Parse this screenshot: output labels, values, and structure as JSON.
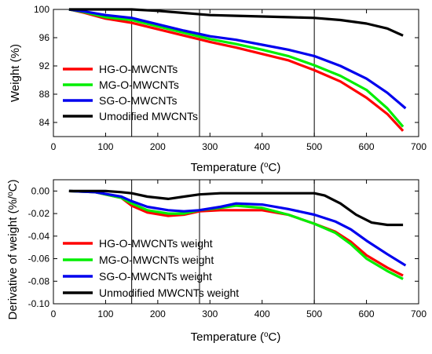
{
  "chart_data": [
    {
      "type": "line",
      "xlabel": "Temperature (oC)",
      "ylabel": "Weight (%)",
      "xlim": [
        0,
        700
      ],
      "ylim": [
        82,
        100
      ],
      "xticks": [
        0,
        100,
        200,
        300,
        400,
        500,
        600,
        700
      ],
      "yticks": [
        84,
        88,
        92,
        96,
        100
      ],
      "vlines": [
        150,
        280,
        500
      ],
      "legend_position": "left",
      "series": [
        {
          "name": "HG-O-MWCNTs",
          "color": "#ff0000",
          "x": [
            30,
            60,
            100,
            150,
            200,
            250,
            300,
            350,
            400,
            450,
            500,
            550,
            600,
            640,
            670
          ],
          "y": [
            100.0,
            99.5,
            98.7,
            98.1,
            97.2,
            96.3,
            95.4,
            94.6,
            93.7,
            92.8,
            91.4,
            89.8,
            87.5,
            85.2,
            82.8
          ]
        },
        {
          "name": "MG-O-MWCNTs",
          "color": "#00ee00",
          "x": [
            30,
            60,
            100,
            150,
            200,
            250,
            300,
            350,
            400,
            450,
            500,
            550,
            600,
            640,
            670
          ],
          "y": [
            100.0,
            99.6,
            98.9,
            98.5,
            97.6,
            96.7,
            95.8,
            95.1,
            94.3,
            93.4,
            92.1,
            90.6,
            88.6,
            86.0,
            83.4
          ]
        },
        {
          "name": "SG-O-MWCNTs",
          "color": "#0000ee",
          "x": [
            30,
            60,
            100,
            150,
            200,
            250,
            300,
            350,
            400,
            450,
            500,
            550,
            600,
            640,
            675
          ],
          "y": [
            100.0,
            99.7,
            99.2,
            98.8,
            97.9,
            97.0,
            96.2,
            95.7,
            95.0,
            94.3,
            93.4,
            92.0,
            90.2,
            88.2,
            86.0
          ]
        },
        {
          "name": "Umodified MWCNTs",
          "color": "#000000",
          "x": [
            30,
            100,
            150,
            200,
            250,
            300,
            350,
            400,
            450,
            500,
            550,
            600,
            640,
            670
          ],
          "y": [
            100.0,
            100.0,
            100.0,
            99.8,
            99.5,
            99.2,
            99.1,
            99.0,
            98.9,
            98.8,
            98.5,
            98.0,
            97.3,
            96.3
          ]
        }
      ]
    },
    {
      "type": "line",
      "xlabel": "Temperature (oC)",
      "ylabel": "Derivative of weight (%/oC)",
      "xlim": [
        0,
        700
      ],
      "ylim": [
        -0.1,
        0.01
      ],
      "xticks": [
        0,
        100,
        200,
        300,
        400,
        500,
        600,
        700
      ],
      "yticks": [
        "0.00",
        "-0.02",
        "-0.04",
        "-0.06",
        "-0.08",
        "-0.10"
      ],
      "vlines": [
        150,
        280,
        500
      ],
      "legend_position": "bottom-left",
      "series": [
        {
          "name": "HG-O-MWCNTs weight",
          "color": "#ff0000",
          "x": [
            30,
            80,
            130,
            150,
            180,
            220,
            250,
            280,
            320,
            350,
            400,
            450,
            500,
            540,
            570,
            600,
            640,
            670
          ],
          "y": [
            0,
            -0.001,
            -0.006,
            -0.013,
            -0.019,
            -0.022,
            -0.021,
            -0.018,
            -0.017,
            -0.017,
            -0.017,
            -0.021,
            -0.029,
            -0.036,
            -0.045,
            -0.057,
            -0.068,
            -0.075
          ]
        },
        {
          "name": "MG-O-MWCNTs weight",
          "color": "#00ee00",
          "x": [
            30,
            80,
            130,
            150,
            180,
            220,
            250,
            280,
            320,
            350,
            400,
            450,
            500,
            540,
            570,
            600,
            640,
            670
          ],
          "y": [
            0,
            -0.001,
            -0.006,
            -0.011,
            -0.017,
            -0.02,
            -0.02,
            -0.017,
            -0.015,
            -0.013,
            -0.015,
            -0.021,
            -0.029,
            -0.037,
            -0.047,
            -0.06,
            -0.071,
            -0.078
          ]
        },
        {
          "name": "SG-O-MWCNTs weight",
          "color": "#0000ee",
          "x": [
            30,
            80,
            130,
            150,
            180,
            220,
            250,
            280,
            320,
            350,
            400,
            450,
            500,
            540,
            570,
            600,
            640,
            675
          ],
          "y": [
            0,
            -0.001,
            -0.005,
            -0.009,
            -0.014,
            -0.017,
            -0.018,
            -0.017,
            -0.014,
            -0.011,
            -0.012,
            -0.016,
            -0.021,
            -0.027,
            -0.034,
            -0.044,
            -0.056,
            -0.066
          ]
        },
        {
          "name": "Unmodified MWCNTs weight",
          "color": "#000000",
          "x": [
            30,
            100,
            130,
            150,
            180,
            220,
            250,
            280,
            320,
            400,
            450,
            500,
            520,
            550,
            580,
            610,
            640,
            670
          ],
          "y": [
            0,
            0,
            -0.001,
            -0.002,
            -0.005,
            -0.007,
            -0.005,
            -0.003,
            -0.002,
            -0.002,
            -0.002,
            -0.002,
            -0.004,
            -0.011,
            -0.021,
            -0.028,
            -0.03,
            -0.03
          ]
        }
      ]
    }
  ]
}
